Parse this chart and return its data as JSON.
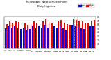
{
  "title": "Milwaukee Weather Dew Point",
  "subtitle": "Daily High/Low",
  "high_values": [
    62,
    68,
    65,
    68,
    66,
    63,
    65,
    60,
    62,
    68,
    65,
    70,
    68,
    74,
    68,
    65,
    70,
    68,
    72,
    65,
    62,
    60,
    75,
    72,
    70,
    68,
    65,
    63,
    70,
    72
  ],
  "low_values": [
    50,
    55,
    52,
    55,
    52,
    48,
    50,
    45,
    48,
    55,
    50,
    58,
    53,
    60,
    53,
    50,
    55,
    52,
    57,
    50,
    47,
    20,
    60,
    55,
    53,
    50,
    48,
    46,
    55,
    58
  ],
  "x_labels": [
    "1",
    "2",
    "3",
    "4",
    "5",
    "6",
    "7",
    "8",
    "9",
    "10",
    "11",
    "12",
    "13",
    "14",
    "15",
    "16",
    "17",
    "18",
    "19",
    "20",
    "21",
    "22",
    "23",
    "24",
    "25",
    "26",
    "27",
    "28",
    "29",
    "30"
  ],
  "high_color": "#ff0000",
  "low_color": "#0000ff",
  "background_color": "#ffffff",
  "ylim": [
    0,
    80
  ],
  "yticks": [
    10,
    20,
    30,
    40,
    50,
    60,
    70,
    80
  ],
  "legend_high": "High",
  "legend_low": "Low",
  "bar_width": 0.38,
  "vline_positions": [
    22.5,
    23.5
  ],
  "vline_color": "#aaaaaa"
}
